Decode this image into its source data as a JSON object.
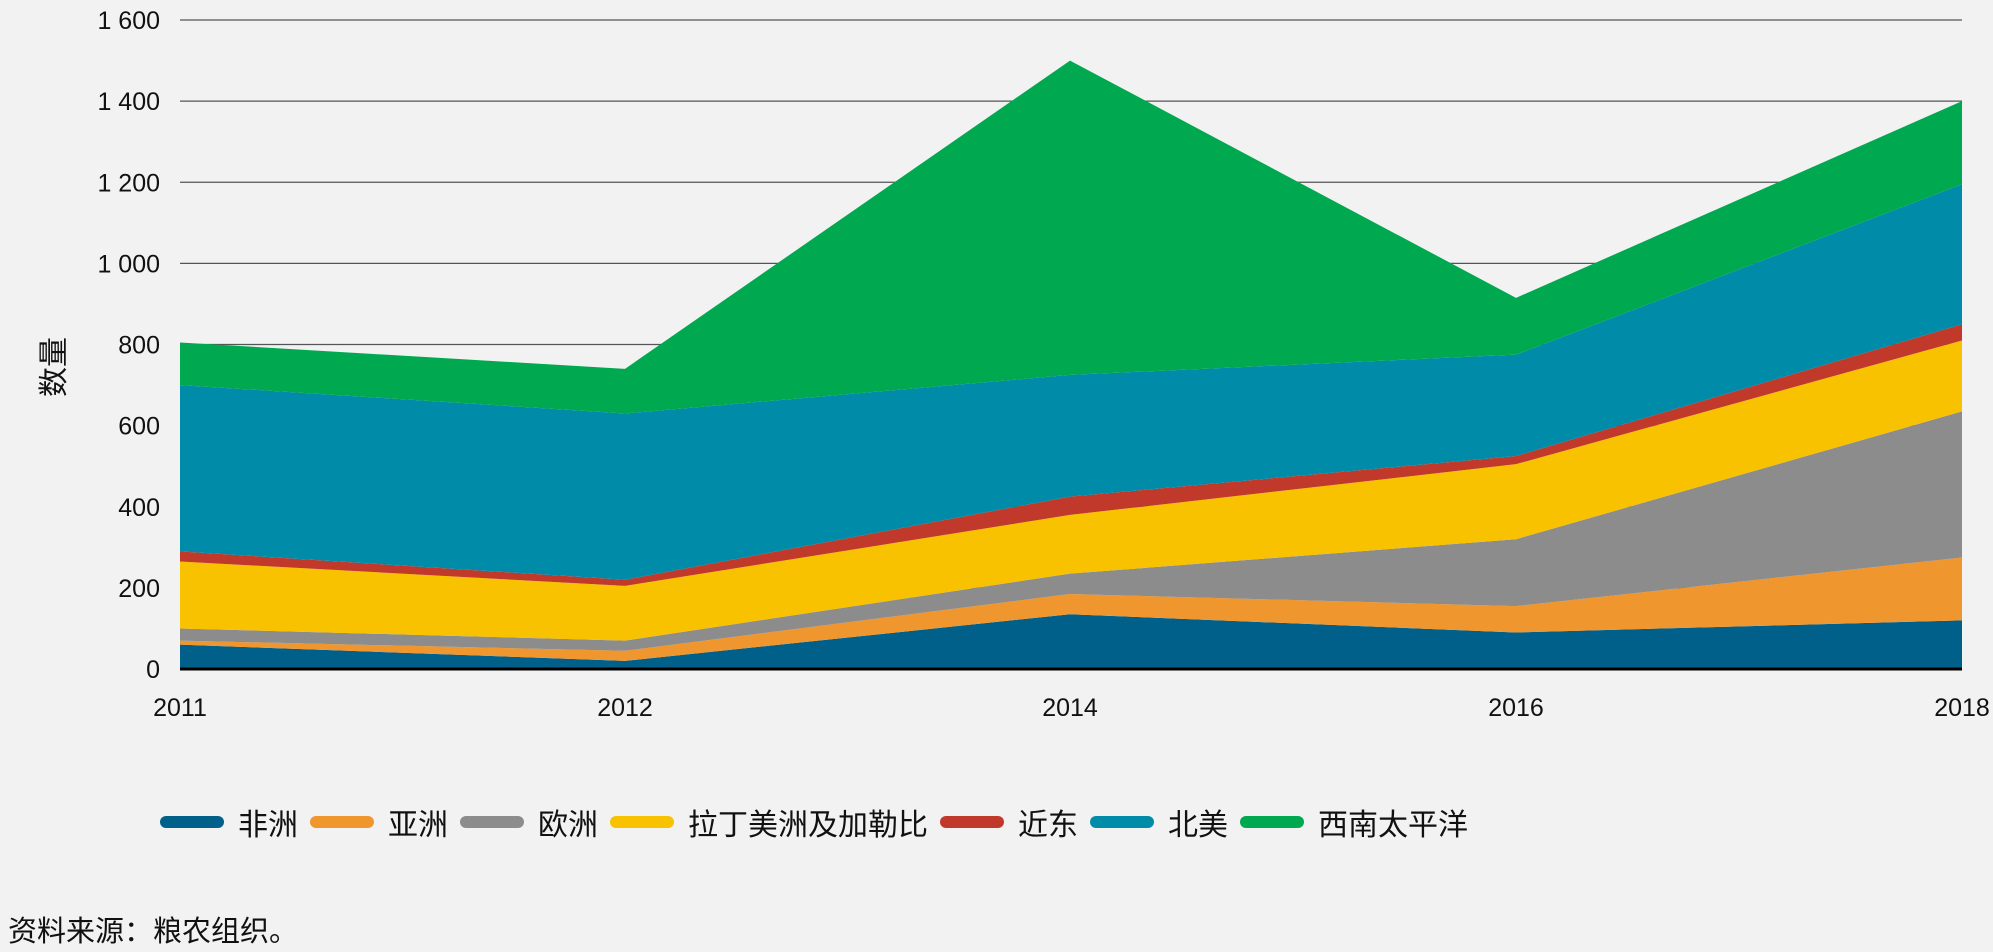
{
  "chart_data": {
    "type": "area",
    "stacked": true,
    "x": [
      "2011",
      "2012",
      "2014",
      "2016",
      "2018"
    ],
    "ylabel": "数量",
    "xlabel": "",
    "ylim": [
      0,
      1600
    ],
    "yticks": [
      0,
      200,
      400,
      600,
      800,
      1000,
      1200,
      1400,
      1600
    ],
    "ytick_labels": [
      "0",
      "200",
      "400",
      "600",
      "800",
      "1 000",
      "1 200",
      "1 400",
      "1 600"
    ],
    "grid": true,
    "legend_position": "bottom",
    "series": [
      {
        "name": "非洲",
        "color": "#00608a",
        "values": [
          60,
          20,
          135,
          90,
          120
        ]
      },
      {
        "name": "亚洲",
        "color": "#f0962e",
        "values": [
          10,
          25,
          50,
          65,
          155
        ]
      },
      {
        "name": "欧洲",
        "color": "#8c8c8c",
        "values": [
          30,
          25,
          50,
          165,
          360
        ]
      },
      {
        "name": "拉丁美洲及加勒比",
        "color": "#f8c200",
        "values": [
          165,
          135,
          145,
          185,
          175
        ]
      },
      {
        "name": "近东",
        "color": "#c0392b",
        "values": [
          25,
          15,
          45,
          20,
          40
        ]
      },
      {
        "name": "北美",
        "color": "#008ca8",
        "values": [
          410,
          410,
          300,
          250,
          345
        ]
      },
      {
        "name": "西南太平洋",
        "color": "#00a84f",
        "values": [
          105,
          110,
          775,
          140,
          205
        ]
      }
    ]
  },
  "source_note": "资料来源：粮农组织。"
}
